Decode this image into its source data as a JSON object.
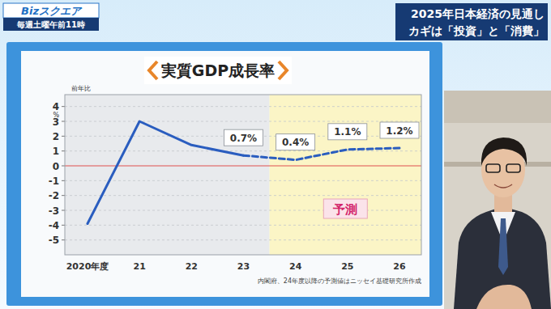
{
  "screen": {
    "logo": "Bizスクエア",
    "schedule": "毎週土曜午前11時",
    "headline": [
      "2025年日本経済の見通し",
      "カギは「投資」と「消費」"
    ]
  },
  "chart_data": {
    "type": "line",
    "title": "実質GDP成長率",
    "ylabel": "前年比",
    "yunit": "%",
    "categories": [
      "2020年度",
      "21",
      "22",
      "23",
      "24",
      "25",
      "26"
    ],
    "series": [
      {
        "type": "line",
        "color": "#2a5dbf",
        "line_style": "solid",
        "values": [
          -3.9,
          3.0,
          1.4,
          0.7,
          null,
          null,
          null
        ],
        "data_labels": true,
        "value_labels": [
          null,
          null,
          null,
          "0.7%",
          null,
          null,
          null
        ]
      },
      {
        "type": "line",
        "color": "#2a5dbf",
        "line_style": "dashed",
        "values": [
          null,
          null,
          null,
          0.7,
          0.4,
          1.1,
          1.2
        ],
        "data_labels": true,
        "value_labels": [
          null,
          null,
          null,
          null,
          "0.4%",
          "1.1%",
          "1.2%"
        ]
      }
    ],
    "annotations": [
      "予測"
    ],
    "source": "内閣府、24年度以降の予測値はニッセイ基礎研究所作成",
    "ylim": [
      -6,
      4.8
    ],
    "yticks": [
      -5,
      -4,
      -3,
      -2,
      -1,
      0,
      1,
      2,
      3,
      4
    ],
    "grid": true
  }
}
